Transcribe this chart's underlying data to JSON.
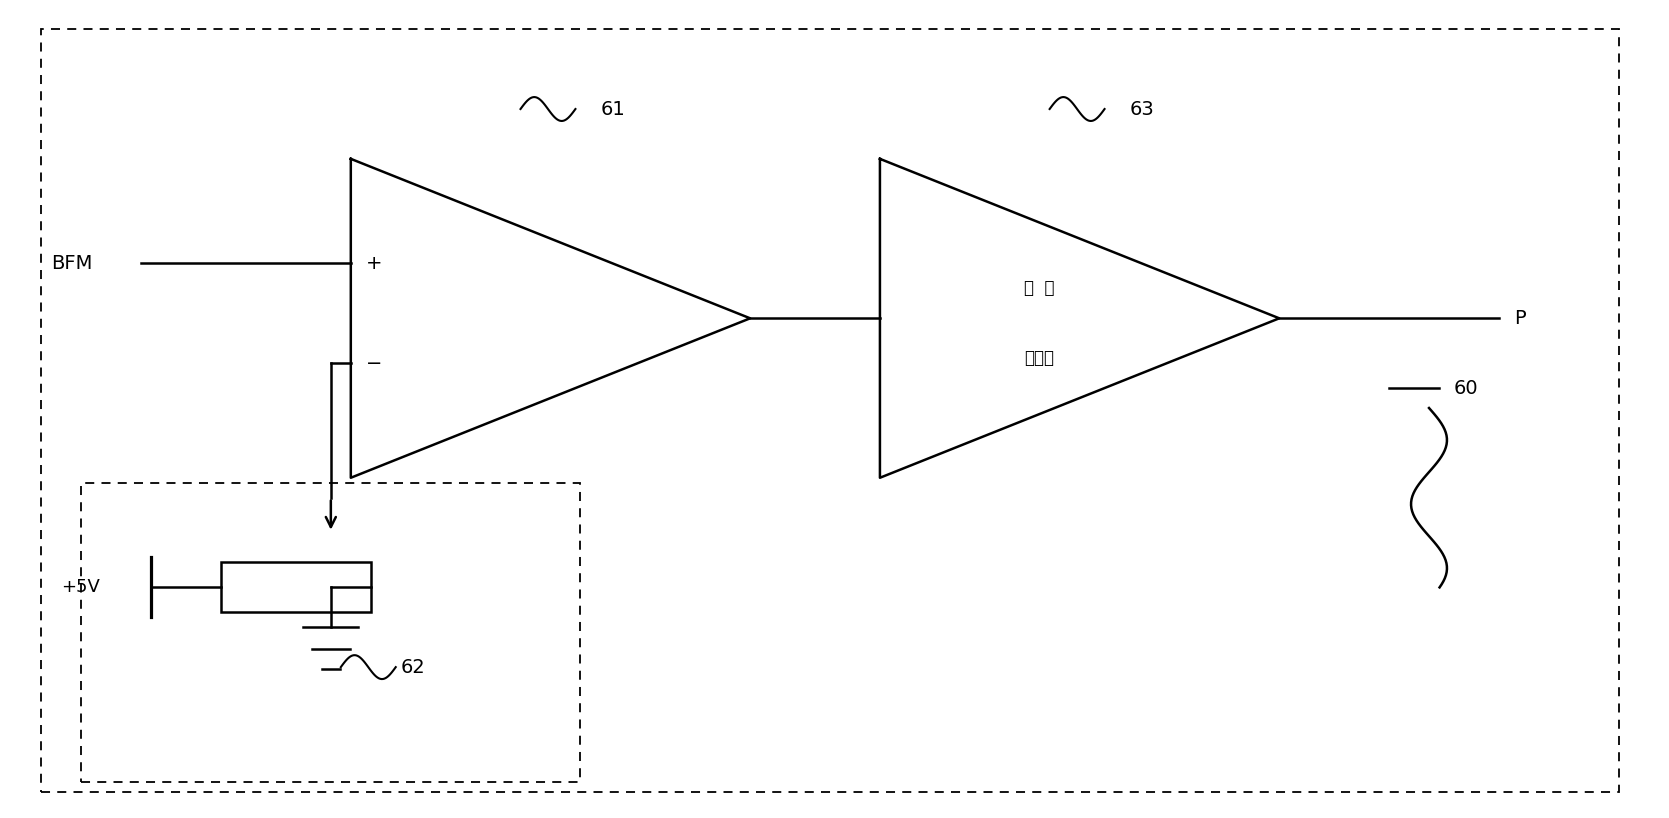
{
  "bg_color": "#ffffff",
  "line_color": "#000000",
  "figsize": [
    16.69,
    8.18
  ],
  "dpi": 100,
  "bfm_label": "BFM",
  "op_amp1_label": "61",
  "op_amp2_label": "63",
  "op_amp2_text1": "比  例",
  "op_amp2_text2": "放大器",
  "label_p": "P",
  "label_60": "60",
  "label_62": "62",
  "label_5v": "+5V"
}
